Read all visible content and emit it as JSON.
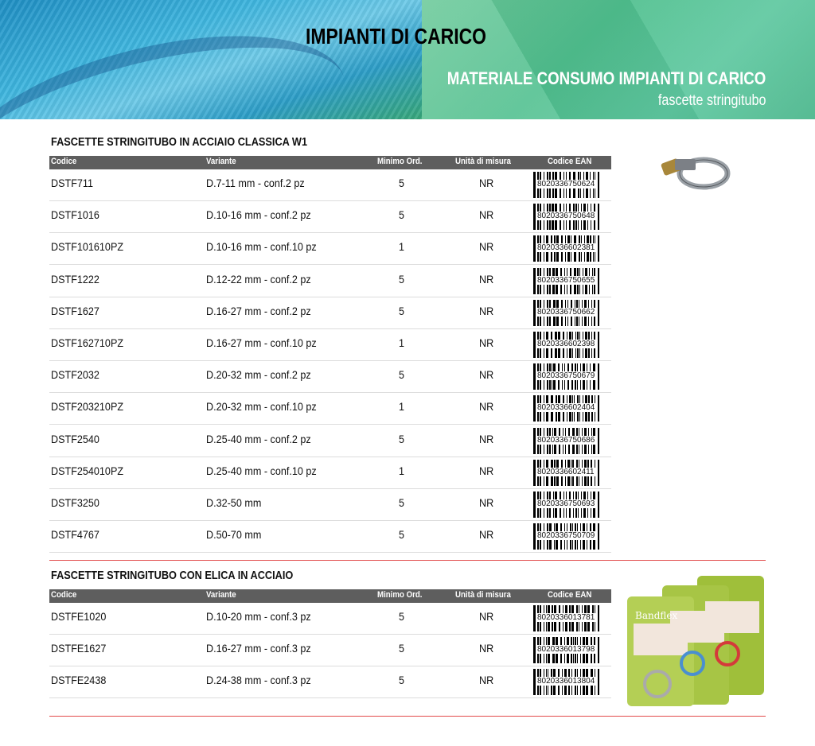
{
  "header": {
    "title": "IMPIANTI DI CARICO",
    "category": "MATERIALE CONSUMO IMPIANTI DI CARICO",
    "subcategory": "fascette stringitubo"
  },
  "columns": {
    "code": "Codice",
    "variant": "Variante",
    "min": "Minimo Ord.",
    "unit": "Unità di misura",
    "ean": "Codice EAN"
  },
  "sections": [
    {
      "title": "FASCETTE STRINGITUBO IN ACCIAIO CLASSICA W1",
      "rows": [
        {
          "code": "DSTF711",
          "variant": "D.7-11 mm - conf.2 pz",
          "min": "5",
          "unit": "NR",
          "ean": "8020336750624"
        },
        {
          "code": "DSTF1016",
          "variant": "D.10-16 mm - conf.2 pz",
          "min": "5",
          "unit": "NR",
          "ean": "8020336750648"
        },
        {
          "code": "DSTF101610PZ",
          "variant": "D.10-16 mm - conf.10 pz",
          "min": "1",
          "unit": "NR",
          "ean": "8020336602381"
        },
        {
          "code": "DSTF1222",
          "variant": "D.12-22 mm - conf.2 pz",
          "min": "5",
          "unit": "NR",
          "ean": "8020336750655"
        },
        {
          "code": "DSTF1627",
          "variant": "D.16-27 mm - conf.2 pz",
          "min": "5",
          "unit": "NR",
          "ean": "8020336750662"
        },
        {
          "code": "DSTF162710PZ",
          "variant": "D.16-27 mm - conf.10 pz",
          "min": "1",
          "unit": "NR",
          "ean": "8020336602398"
        },
        {
          "code": "DSTF2032",
          "variant": "D.20-32 mm - conf.2 pz",
          "min": "5",
          "unit": "NR",
          "ean": "8020336750679"
        },
        {
          "code": "DSTF203210PZ",
          "variant": "D.20-32 mm - conf.10 pz",
          "min": "1",
          "unit": "NR",
          "ean": "8020336602404"
        },
        {
          "code": "DSTF2540",
          "variant": "D.25-40 mm - conf.2 pz",
          "min": "5",
          "unit": "NR",
          "ean": "8020336750686"
        },
        {
          "code": "DSTF254010PZ",
          "variant": "D.25-40 mm - conf.10 pz",
          "min": "1",
          "unit": "NR",
          "ean": "8020336602411"
        },
        {
          "code": "DSTF3250",
          "variant": "D.32-50 mm",
          "min": "5",
          "unit": "NR",
          "ean": "8020336750693"
        },
        {
          "code": "DSTF4767",
          "variant": "D.50-70 mm",
          "min": "5",
          "unit": "NR",
          "ean": "8020336750709"
        }
      ]
    },
    {
      "title": "FASCETTE STRINGITUBO CON ELICA IN ACCIAIO",
      "rows": [
        {
          "code": "DSTFE1020",
          "variant": "D.10-20 mm - conf.3 pz",
          "min": "5",
          "unit": "NR",
          "ean": "8020336013781"
        },
        {
          "code": "DSTFE1627",
          "variant": "D.16-27 mm - conf.3 pz",
          "min": "5",
          "unit": "NR",
          "ean": "8020336013798"
        },
        {
          "code": "DSTFE2438",
          "variant": "D.24-38 mm - conf.3 pz",
          "min": "5",
          "unit": "NR",
          "ean": "8020336013804"
        }
      ]
    }
  ],
  "product_images": {
    "brand_logo": "Bandflex"
  },
  "colors": {
    "table_header": "#5e5e5e",
    "divider": "#e24a4a",
    "banner_blue": "#3fb6df",
    "banner_green": "#4fbf8e"
  }
}
